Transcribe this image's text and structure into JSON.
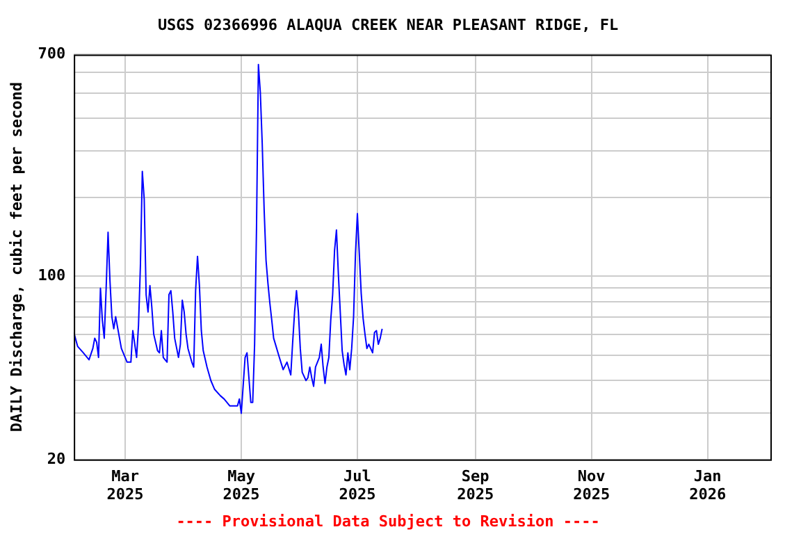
{
  "chart_data": {
    "type": "line",
    "title": "USGS 02366996 ALAQUA CREEK NEAR PLEASANT RIDGE, FL",
    "ylabel": "DAILY Discharge, cubic feet per second",
    "annotations": [
      "---- Provisional Data Subject to Revision ----"
    ],
    "x": [
      "2025-02-02",
      "2025-02-04",
      "2025-02-07",
      "2025-02-10",
      "2025-02-12",
      "2025-02-13",
      "2025-02-14",
      "2025-02-15",
      "2025-02-16",
      "2025-02-17",
      "2025-02-18",
      "2025-02-19",
      "2025-02-20",
      "2025-02-21",
      "2025-02-22",
      "2025-02-23",
      "2025-02-24",
      "2025-02-27",
      "2025-03-02",
      "2025-03-04",
      "2025-03-05",
      "2025-03-07",
      "2025-03-08",
      "2025-03-09",
      "2025-03-10",
      "2025-03-11",
      "2025-03-12",
      "2025-03-13",
      "2025-03-14",
      "2025-03-15",
      "2025-03-16",
      "2025-03-18",
      "2025-03-19",
      "2025-03-20",
      "2025-03-21",
      "2025-03-23",
      "2025-03-24",
      "2025-03-25",
      "2025-03-26",
      "2025-03-27",
      "2025-03-29",
      "2025-03-30",
      "2025-03-31",
      "2025-04-01",
      "2025-04-02",
      "2025-04-03",
      "2025-04-05",
      "2025-04-06",
      "2025-04-07",
      "2025-04-08",
      "2025-04-09",
      "2025-04-10",
      "2025-04-11",
      "2025-04-13",
      "2025-04-15",
      "2025-04-17",
      "2025-04-20",
      "2025-04-22",
      "2025-04-25",
      "2025-04-29",
      "2025-04-30",
      "2025-05-01",
      "2025-05-03",
      "2025-05-04",
      "2025-05-06",
      "2025-05-07",
      "2025-05-08",
      "2025-05-09",
      "2025-05-10",
      "2025-05-11",
      "2025-05-12",
      "2025-05-13",
      "2025-05-14",
      "2025-05-15",
      "2025-05-16",
      "2025-05-17",
      "2025-05-18",
      "2025-05-21",
      "2025-05-23",
      "2025-05-25",
      "2025-05-27",
      "2025-05-28",
      "2025-05-29",
      "2025-05-30",
      "2025-05-31",
      "2025-06-01",
      "2025-06-02",
      "2025-06-04",
      "2025-06-05",
      "2025-06-06",
      "2025-06-07",
      "2025-06-08",
      "2025-06-09",
      "2025-06-11",
      "2025-06-12",
      "2025-06-13",
      "2025-06-14",
      "2025-06-15",
      "2025-06-16",
      "2025-06-17",
      "2025-06-18",
      "2025-06-19",
      "2025-06-20",
      "2025-06-21",
      "2025-06-22",
      "2025-06-23",
      "2025-06-24",
      "2025-06-25",
      "2025-06-26",
      "2025-06-27",
      "2025-06-28",
      "2025-06-29",
      "2025-06-30",
      "2025-07-01",
      "2025-07-02",
      "2025-07-03",
      "2025-07-04",
      "2025-07-05",
      "2025-07-06",
      "2025-07-07",
      "2025-07-09",
      "2025-07-10",
      "2025-07-11",
      "2025-07-12",
      "2025-07-13",
      "2025-07-14"
    ],
    "series": [
      {
        "color": "#0000ff",
        "values": [
          61,
          54,
          51,
          48,
          53,
          58,
          56,
          49,
          90,
          68,
          58,
          90,
          147,
          96,
          70,
          63,
          70,
          53,
          47,
          47,
          62,
          49,
          65,
          110,
          251,
          196,
          85,
          73,
          92,
          76,
          60,
          52,
          51,
          62,
          49,
          47,
          85,
          88,
          73,
          58,
          49,
          55,
          81,
          73,
          60,
          53,
          47,
          45,
          88,
          119,
          92,
          62,
          52,
          45,
          40,
          37,
          35,
          34,
          32,
          32,
          34,
          30,
          49,
          51,
          33,
          33,
          55,
          153,
          641,
          502,
          320,
          180,
          115,
          94,
          79,
          68,
          58,
          49,
          44,
          47,
          42,
          56,
          73,
          88,
          73,
          53,
          43,
          40,
          41,
          45,
          41,
          38,
          45,
          49,
          55,
          45,
          39,
          45,
          49,
          68,
          85,
          125,
          150,
          102,
          73,
          52,
          46,
          42,
          51,
          44,
          53,
          70,
          122,
          173,
          122,
          86,
          69,
          60,
          53,
          55,
          51,
          61,
          62,
          55,
          58,
          63
        ]
      }
    ],
    "log": true,
    "ylim": [
      20,
      700
    ],
    "yticks": [
      20,
      {
        "value": 30,
        "label": null
      },
      {
        "value": 40,
        "label": null
      },
      {
        "value": 50,
        "label": null
      },
      {
        "value": 60,
        "label": null
      },
      {
        "value": 70,
        "label": null
      },
      {
        "value": 80,
        "label": null
      },
      {
        "value": 90,
        "label": null
      },
      100,
      {
        "value": 200,
        "label": null
      },
      {
        "value": 300,
        "label": null
      },
      {
        "value": 400,
        "label": null
      },
      {
        "value": 500,
        "label": null
      },
      {
        "value": 600,
        "label": null
      },
      700
    ],
    "xlim": [
      "2025-02-02",
      "2026-02-03"
    ],
    "xticks": [
      {
        "value": "2025-03-01",
        "label": "Mar 2025"
      },
      {
        "value": "2025-05-01",
        "label": "May 2025"
      },
      {
        "value": "2025-07-01",
        "label": "Jul 2025"
      },
      {
        "value": "2025-09-01",
        "label": "Sep 2025"
      },
      {
        "value": "2025-11-01",
        "label": "Nov 2025"
      },
      {
        "value": "2026-01-01",
        "label": "Jan 2026"
      }
    ],
    "grid": true
  }
}
